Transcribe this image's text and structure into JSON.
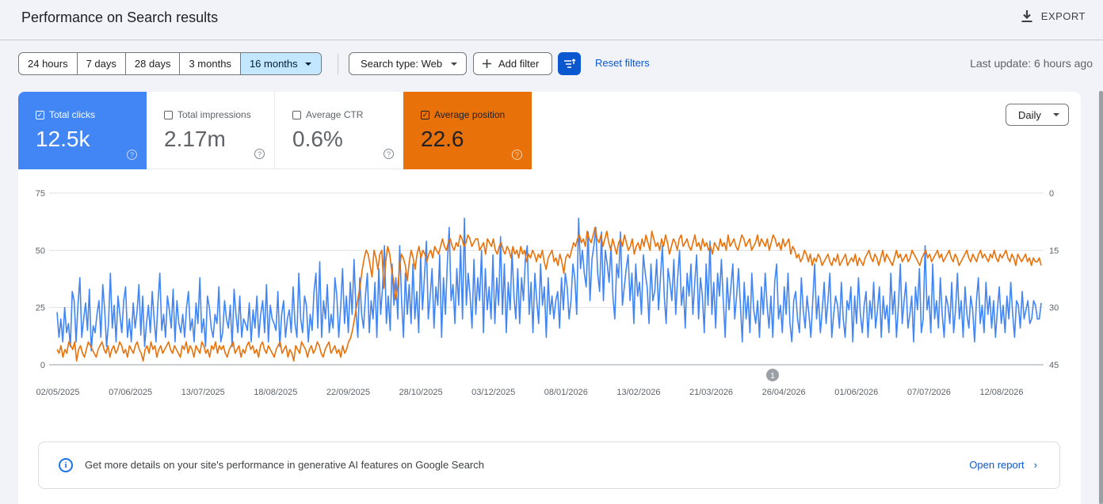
{
  "header": {
    "title": "Performance on Search results",
    "export_label": "EXPORT"
  },
  "toolbar": {
    "ranges": [
      "24 hours",
      "7 days",
      "28 days",
      "3 months",
      "16 months"
    ],
    "active_range": "16 months",
    "search_type": "Search type: Web",
    "add_filter": "Add filter",
    "reset": "Reset filters",
    "last_update": "Last update: 6 hours ago"
  },
  "metrics": {
    "clicks": {
      "label": "Total clicks",
      "value": "12.5k",
      "checked": true,
      "color": "#4285f4"
    },
    "impressions": {
      "label": "Total impressions",
      "value": "2.17m",
      "checked": false
    },
    "ctr": {
      "label": "Average CTR",
      "value": "0.6%",
      "checked": false
    },
    "position": {
      "label": "Average position",
      "value": "22.6",
      "checked": true,
      "color": "#e8710a"
    }
  },
  "granularity": "Daily",
  "annotation_marker": "1",
  "chart_data": {
    "type": "line",
    "x_ticks": [
      "02/05/2025",
      "07/06/2025",
      "13/07/2025",
      "18/08/2025",
      "22/09/2025",
      "28/10/2025",
      "03/12/2025",
      "08/01/2026",
      "13/02/2026",
      "21/03/2026",
      "26/04/2026",
      "01/06/2026",
      "07/07/2026",
      "12/08/2026"
    ],
    "y_left_ticks": [
      0,
      25,
      50,
      75
    ],
    "y_left_range": [
      0,
      75
    ],
    "y_right_ticks": [
      0,
      15,
      30,
      45
    ],
    "y_right_range": [
      45,
      0
    ],
    "grid": "horizontal",
    "series": [
      {
        "name": "Total clicks",
        "color": "#4285f4",
        "axis": "left",
        "values": [
          23,
          12,
          20,
          10,
          25,
          14,
          18,
          8,
          32,
          28,
          10,
          26,
          38,
          12,
          20,
          27,
          15,
          33,
          6,
          17,
          14,
          22,
          28,
          12,
          35,
          24,
          8,
          18,
          40,
          16,
          26,
          10,
          30,
          22,
          14,
          28,
          34,
          12,
          20,
          10,
          27,
          16,
          23,
          35,
          13,
          30,
          8,
          18,
          26,
          14,
          32,
          20,
          10,
          27,
          40,
          15,
          22,
          12,
          30,
          24,
          16,
          33,
          10,
          28,
          18,
          14,
          22,
          12,
          25,
          32,
          15,
          20,
          10,
          27,
          18,
          38,
          14,
          20,
          8,
          30,
          25,
          16,
          12,
          22,
          18,
          34,
          10,
          14,
          28,
          20,
          16,
          26,
          8,
          33,
          22,
          14,
          30,
          12,
          20,
          18,
          15,
          27,
          10,
          24,
          16,
          30,
          12,
          22,
          28,
          14,
          35,
          10,
          26,
          20,
          18,
          15,
          32,
          8,
          22,
          28,
          12,
          20,
          24,
          14,
          34,
          18,
          12,
          40,
          20,
          14,
          30,
          26,
          10,
          22,
          15,
          32,
          40,
          16,
          45,
          12,
          28,
          20,
          35,
          14,
          22,
          16,
          38,
          30,
          12,
          25,
          42,
          18,
          30,
          14,
          36,
          22,
          46,
          24,
          12,
          38,
          22,
          16,
          30,
          40,
          14,
          28,
          20,
          36,
          12,
          42,
          22,
          34,
          52,
          18,
          30,
          15,
          44,
          26,
          38,
          20,
          52,
          28,
          12,
          40,
          22,
          35,
          18,
          44,
          20,
          32,
          14,
          48,
          24,
          38,
          54,
          20,
          30,
          42,
          16,
          34,
          26,
          48,
          12,
          38,
          22,
          44,
          60,
          28,
          35,
          18,
          42,
          26,
          52,
          20,
          64,
          26,
          40,
          30,
          16,
          46,
          22,
          38,
          28,
          50,
          14,
          42,
          24,
          34,
          20,
          48,
          18,
          38,
          26,
          56,
          22,
          44,
          14,
          36,
          24,
          50,
          30,
          20,
          42,
          18,
          38,
          28,
          46,
          52,
          22,
          36,
          14,
          40,
          28,
          18,
          44,
          26,
          34,
          12,
          38,
          22,
          30,
          20,
          28,
          32,
          16,
          38,
          24,
          40,
          34,
          20,
          28,
          44,
          38,
          22,
          64,
          42,
          50,
          40,
          34,
          58,
          28,
          46,
          52,
          60,
          40,
          32,
          58,
          28,
          50,
          44,
          36,
          52,
          30,
          20,
          44,
          38,
          58,
          26,
          34,
          42,
          48,
          28,
          40,
          18,
          44,
          30,
          36,
          22,
          48,
          40,
          34,
          18,
          44,
          28,
          32,
          46,
          24,
          38,
          52,
          30,
          18,
          42,
          36,
          28,
          46,
          22,
          38,
          50,
          26,
          34,
          16,
          40,
          30,
          44,
          22,
          36,
          48,
          20,
          38,
          30,
          14,
          44,
          26,
          54,
          22,
          36,
          16,
          40,
          30,
          46,
          28,
          12,
          38,
          24,
          34,
          44,
          20,
          30,
          42,
          26,
          10,
          36,
          20,
          30,
          14,
          40,
          24,
          18,
          28,
          12,
          34,
          22,
          40,
          26,
          16,
          30,
          12,
          36,
          44,
          20,
          26,
          14,
          34,
          22,
          40,
          18,
          10,
          28,
          32,
          20,
          14,
          38,
          24,
          16,
          30,
          22,
          12,
          28,
          44,
          20,
          30,
          14,
          24,
          36,
          18,
          28,
          40,
          12,
          22,
          30,
          26,
          16,
          36,
          20,
          12,
          28,
          24,
          34,
          10,
          30,
          18,
          38,
          22,
          14,
          26,
          32,
          12,
          28,
          20,
          36,
          16,
          24,
          34,
          12,
          30,
          20,
          26,
          14,
          40,
          22,
          32,
          12,
          26,
          44,
          18,
          28,
          36,
          16,
          22,
          30,
          10,
          34,
          24,
          42,
          14,
          20,
          52,
          24,
          30,
          14,
          44,
          20,
          28,
          16,
          38,
          22,
          12,
          30,
          26,
          18,
          36,
          14,
          24,
          40,
          20,
          28,
          12,
          34,
          22,
          16,
          30,
          24,
          10,
          28,
          38,
          18,
          26,
          14,
          36,
          22,
          30,
          16,
          28,
          12,
          24,
          34,
          18,
          26,
          14,
          30,
          20,
          36,
          22,
          12,
          28,
          26,
          16,
          32,
          20,
          24,
          28,
          18,
          20,
          28,
          26,
          20,
          20,
          27
        ]
      },
      {
        "name": "Average position",
        "color": "#e8710a",
        "axis": "right",
        "values": [
          41,
          42,
          40,
          43,
          41,
          42,
          39,
          40,
          41,
          39,
          44,
          41,
          40,
          42,
          43,
          41,
          39,
          40,
          41,
          42,
          43,
          41,
          40,
          39,
          41,
          42,
          40,
          43,
          41,
          40,
          42,
          41,
          39,
          40,
          42,
          41,
          43,
          40,
          41,
          42,
          40,
          39,
          41,
          42,
          44,
          41,
          40,
          42,
          39,
          41,
          40,
          43,
          41,
          40,
          42,
          41,
          40,
          39,
          41,
          42,
          40,
          41,
          42,
          43,
          40,
          41,
          39,
          42,
          40,
          41,
          43,
          40,
          41,
          42,
          39,
          40,
          42,
          41,
          43,
          40,
          41,
          39,
          42,
          40,
          41,
          40,
          42,
          43,
          41,
          40,
          39,
          42,
          41,
          40,
          43,
          41,
          42,
          40,
          39,
          41,
          40,
          42,
          41,
          43,
          40,
          39,
          41,
          42,
          40,
          41,
          42,
          43,
          41,
          40,
          39,
          42,
          41,
          40,
          43,
          41,
          42,
          44,
          40,
          41,
          42,
          39,
          40,
          41,
          43,
          41,
          40,
          42,
          41,
          39,
          40,
          42,
          43,
          41,
          40,
          39,
          42,
          41,
          40,
          42,
          41,
          43,
          40,
          42,
          41,
          39,
          38,
          36,
          33,
          30,
          27,
          24,
          20,
          17,
          15,
          16,
          19,
          22,
          15,
          17,
          20,
          16,
          15,
          25,
          18,
          14,
          16,
          20,
          23,
          28,
          25,
          20,
          16,
          17,
          19,
          23,
          18,
          15,
          17,
          20,
          16,
          14,
          17,
          15,
          16,
          18,
          16,
          15,
          17,
          14,
          15,
          16,
          14,
          12,
          14,
          15,
          13,
          12,
          14,
          15,
          13,
          14,
          11,
          12,
          14,
          13,
          11,
          12,
          14,
          13,
          12,
          12,
          15,
          14,
          13,
          16,
          12,
          13,
          14,
          12,
          15,
          16,
          14,
          13,
          15,
          16,
          14,
          15,
          17,
          14,
          16,
          15,
          17,
          14,
          16,
          15,
          18,
          16,
          17,
          15,
          16,
          18,
          16,
          17,
          15,
          18,
          20,
          17,
          16,
          15,
          18,
          17,
          19,
          16,
          18,
          21,
          17,
          16,
          17,
          15,
          13,
          14,
          12,
          11,
          13,
          12,
          14,
          10,
          12,
          13,
          11,
          9,
          12,
          13,
          11,
          14,
          12,
          10,
          13,
          15,
          12,
          14,
          16,
          13,
          12,
          14,
          11,
          13,
          15,
          14,
          12,
          16,
          14,
          13,
          15,
          12,
          14,
          11,
          13,
          15,
          10,
          12,
          14,
          13,
          15,
          12,
          14,
          11,
          13,
          16,
          14,
          12,
          13,
          15,
          12,
          11,
          14,
          13,
          12,
          14,
          15,
          13,
          11,
          14,
          13,
          15,
          12,
          14,
          13,
          15,
          14,
          16,
          13,
          14,
          15,
          12,
          14,
          13,
          15,
          11,
          14,
          13,
          12,
          14,
          15,
          13,
          11,
          12,
          14,
          13,
          12,
          15,
          14,
          13,
          11,
          14,
          12,
          13,
          14,
          12,
          15,
          13,
          11,
          12,
          14,
          13,
          15,
          12,
          14,
          13,
          12,
          16,
          14,
          15,
          17,
          16,
          18,
          17,
          15,
          16,
          18,
          16,
          19,
          17,
          18,
          16,
          17,
          19,
          18,
          17,
          16,
          18,
          19,
          17,
          18,
          16,
          19,
          18,
          17,
          16,
          19,
          18,
          17,
          18,
          16,
          19,
          17,
          18,
          19,
          17,
          16,
          15,
          17,
          18,
          16,
          17,
          19,
          17,
          15,
          18,
          16,
          17,
          18,
          19,
          17,
          15,
          17,
          16,
          18,
          17,
          16,
          18,
          17,
          15,
          16,
          17,
          18,
          19,
          17,
          16,
          15,
          17,
          16,
          18,
          17,
          16,
          15,
          17,
          16,
          18,
          17,
          16,
          15,
          17,
          18,
          16,
          17,
          19,
          18,
          17,
          16,
          15,
          17,
          18,
          16,
          17,
          18,
          16,
          15,
          17,
          16,
          17,
          18,
          16,
          17,
          15,
          17,
          18,
          16,
          17,
          16,
          15,
          17,
          18,
          16,
          17,
          19,
          16,
          17,
          18,
          17,
          16,
          18,
          17,
          19,
          17,
          18,
          18,
          17,
          19
        ]
      }
    ]
  },
  "banner": {
    "text": "Get more details on your site's performance in generative AI features on Google Search",
    "link": "Open report"
  }
}
